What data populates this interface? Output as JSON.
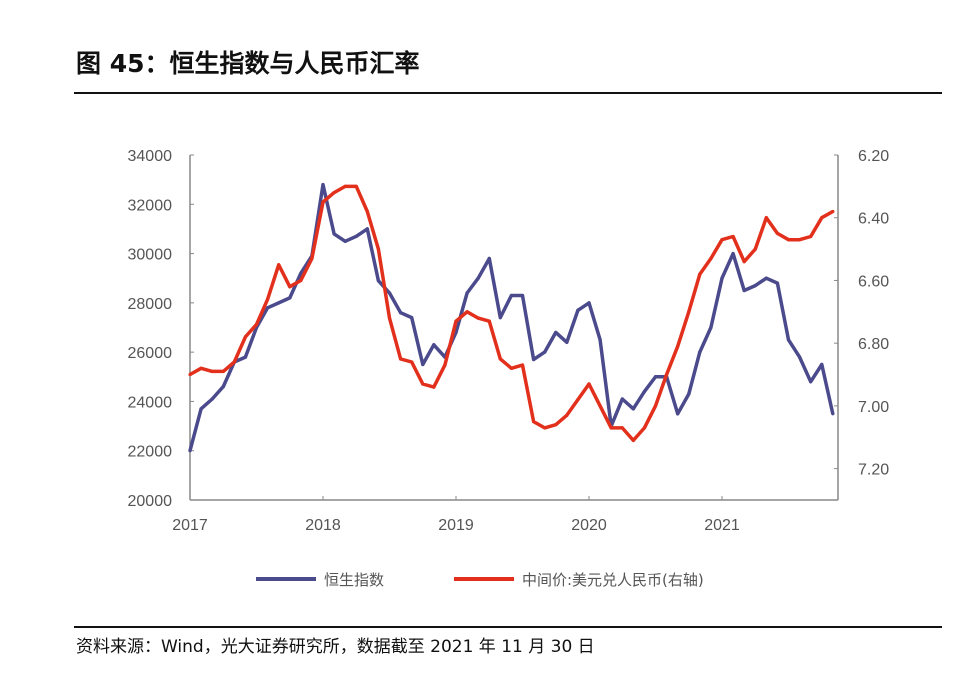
{
  "title": "图 45：恒生指数与人民币汇率",
  "source": "资料来源：Wind，光大证券研究所，数据截至 2021 年 11 月 30 日",
  "chart_data": {
    "type": "line",
    "title": "图 45：恒生指数与人民币汇率",
    "x_ticks": [
      "2017",
      "2018",
      "2019",
      "2020",
      "2021"
    ],
    "x_range": [
      "2017-01",
      "2021-11"
    ],
    "left_axis": {
      "ylim": [
        20000,
        34000
      ],
      "ticks": [
        "34000",
        "32000",
        "30000",
        "28000",
        "26000",
        "24000",
        "22000",
        "20000"
      ]
    },
    "right_axis": {
      "ylim": [
        6.2,
        7.3
      ],
      "inverted": true,
      "ticks": [
        "6.20",
        "6.40",
        "6.60",
        "6.80",
        "7.00",
        "7.20"
      ]
    },
    "grid": false,
    "legend_position": "bottom",
    "x": [
      "2017-01",
      "2017-02",
      "2017-03",
      "2017-04",
      "2017-05",
      "2017-06",
      "2017-07",
      "2017-08",
      "2017-09",
      "2017-10",
      "2017-11",
      "2017-12",
      "2018-01",
      "2018-02",
      "2018-03",
      "2018-04",
      "2018-05",
      "2018-06",
      "2018-07",
      "2018-08",
      "2018-09",
      "2018-10",
      "2018-11",
      "2018-12",
      "2019-01",
      "2019-02",
      "2019-03",
      "2019-04",
      "2019-05",
      "2019-06",
      "2019-07",
      "2019-08",
      "2019-09",
      "2019-10",
      "2019-11",
      "2019-12",
      "2020-01",
      "2020-02",
      "2020-03",
      "2020-04",
      "2020-05",
      "2020-06",
      "2020-07",
      "2020-08",
      "2020-09",
      "2020-10",
      "2020-11",
      "2020-12",
      "2021-01",
      "2021-02",
      "2021-03",
      "2021-04",
      "2021-05",
      "2021-06",
      "2021-07",
      "2021-08",
      "2021-09",
      "2021-10",
      "2021-11"
    ],
    "series": [
      {
        "name": "恒生指数",
        "axis": "left",
        "color": "#4b4a8c",
        "values": [
          22000,
          23700,
          24100,
          24600,
          25600,
          25800,
          27000,
          27800,
          28000,
          28200,
          29200,
          29900,
          32800,
          30800,
          30500,
          30700,
          31000,
          28900,
          28400,
          27600,
          27400,
          25500,
          26300,
          25800,
          26800,
          28400,
          29000,
          29800,
          27400,
          28300,
          28300,
          25700,
          26000,
          26800,
          26400,
          27700,
          28000,
          26500,
          23000,
          24100,
          23700,
          24400,
          25000,
          25000,
          23500,
          24300,
          26000,
          27000,
          29000,
          30000,
          28500,
          28700,
          29000,
          28800,
          26500,
          25800,
          24800,
          25500,
          23500
        ]
      },
      {
        "name": "中间价:美元兑人民币(右轴)",
        "axis": "right",
        "color": "#e2301c",
        "values": [
          6.9,
          6.88,
          6.89,
          6.89,
          6.86,
          6.78,
          6.74,
          6.66,
          6.55,
          6.62,
          6.6,
          6.53,
          6.35,
          6.32,
          6.3,
          6.3,
          6.38,
          6.5,
          6.72,
          6.85,
          6.86,
          6.93,
          6.94,
          6.87,
          6.73,
          6.7,
          6.72,
          6.73,
          6.85,
          6.88,
          6.87,
          7.05,
          7.07,
          7.06,
          7.03,
          6.98,
          6.93,
          7.0,
          7.07,
          7.07,
          7.11,
          7.07,
          7.0,
          6.9,
          6.81,
          6.7,
          6.58,
          6.53,
          6.47,
          6.46,
          6.54,
          6.5,
          6.4,
          6.45,
          6.47,
          6.47,
          6.46,
          6.4,
          6.38
        ]
      }
    ]
  }
}
